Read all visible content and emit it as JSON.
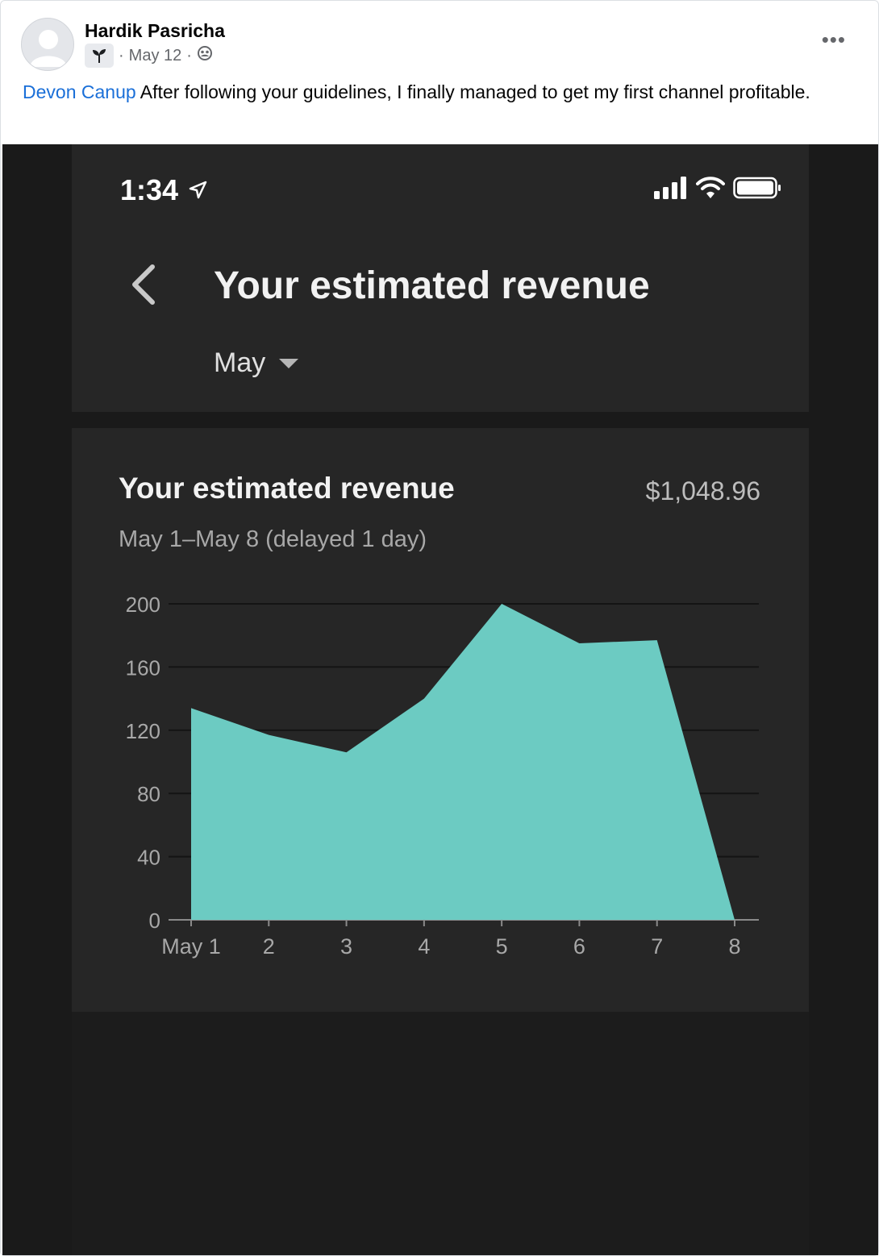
{
  "post": {
    "author": "Hardik Pasricha",
    "date": "May 12",
    "separator": "·",
    "more_label": "•••",
    "mention": "Devon Canup",
    "text": " After following your guidelines, I finally managed to get my first channel profitable."
  },
  "phone": {
    "time": "1:34",
    "title": "Your estimated revenue",
    "month": "May"
  },
  "card": {
    "title": "Your estimated revenue",
    "total": "$1,048.96",
    "subtitle": "May 1–May 8 (delayed 1 day)"
  },
  "colors": {
    "area": "#6ccbc2",
    "background": "#262626",
    "mention": "#1a6fd8"
  },
  "chart_data": {
    "type": "area",
    "categories": [
      "May 1",
      "2",
      "3",
      "4",
      "5",
      "6",
      "7",
      "8"
    ],
    "values": [
      134,
      117,
      106,
      140,
      200,
      175,
      177,
      0
    ],
    "yticks": [
      "0",
      "40",
      "80",
      "120",
      "160",
      "200"
    ],
    "ylim": [
      0,
      200
    ],
    "grid": true
  }
}
